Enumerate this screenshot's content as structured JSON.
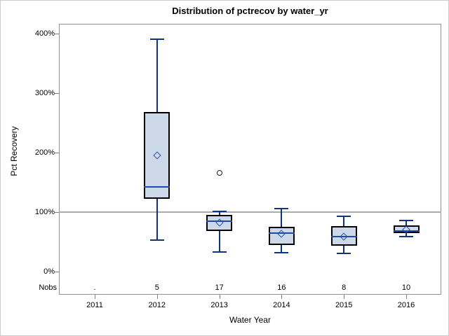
{
  "title": "Distribution of pctrecov by water_yr",
  "axes": {
    "y_label": "Pct Recovery",
    "x_label": "Water Year",
    "nobs_label": "Nobs"
  },
  "colors": {
    "box_fill": "#cdd8e8",
    "box_border": "#000000",
    "whisker": "#11337f",
    "median": "#1d4ba6",
    "mean_marker": "#2253ad",
    "outlier": "#1a1a1a",
    "reference_line": "#ababab",
    "frame": "#919191",
    "text": "#000000"
  },
  "chart_data": {
    "type": "boxplot",
    "title": "Distribution of pctrecov by water_yr",
    "xlabel": "Water Year",
    "ylabel": "Pct Recovery",
    "ylim": [
      -39,
      416
    ],
    "y_ticks": [
      0,
      100,
      200,
      300,
      400
    ],
    "y_tick_labels": [
      "0%",
      "100%",
      "200%",
      "300%",
      "400%"
    ],
    "reference_line_y": 100,
    "grid": "off",
    "categories": [
      "2011",
      "2012",
      "2013",
      "2014",
      "2015",
      "2016"
    ],
    "nobs_row": [
      ".",
      "5",
      "17",
      "16",
      "8",
      "10"
    ],
    "boxes": [
      {
        "category": "2011",
        "nobs": ".",
        "has_data": false
      },
      {
        "category": "2012",
        "nobs": "5",
        "has_data": true,
        "whisker_low": 53,
        "q1": 122,
        "median": 142,
        "q3": 268,
        "whisker_high": 390,
        "mean": 195,
        "outliers": []
      },
      {
        "category": "2013",
        "nobs": "17",
        "has_data": true,
        "whisker_low": 33,
        "q1": 68,
        "median": 85,
        "q3": 95,
        "whisker_high": 101,
        "mean": 82,
        "outliers": [
          166
        ]
      },
      {
        "category": "2014",
        "nobs": "16",
        "has_data": true,
        "whisker_low": 31,
        "q1": 45,
        "median": 65,
        "q3": 75,
        "whisker_high": 106,
        "mean": 63,
        "outliers": []
      },
      {
        "category": "2015",
        "nobs": "8",
        "has_data": true,
        "whisker_low": 30,
        "q1": 43,
        "median": 59,
        "q3": 76,
        "whisker_high": 93,
        "mean": 58,
        "outliers": []
      },
      {
        "category": "2016",
        "nobs": "10",
        "has_data": true,
        "whisker_low": 58,
        "q1": 64,
        "median": 68,
        "q3": 77,
        "whisker_high": 86,
        "mean": 70,
        "outliers": []
      }
    ]
  }
}
